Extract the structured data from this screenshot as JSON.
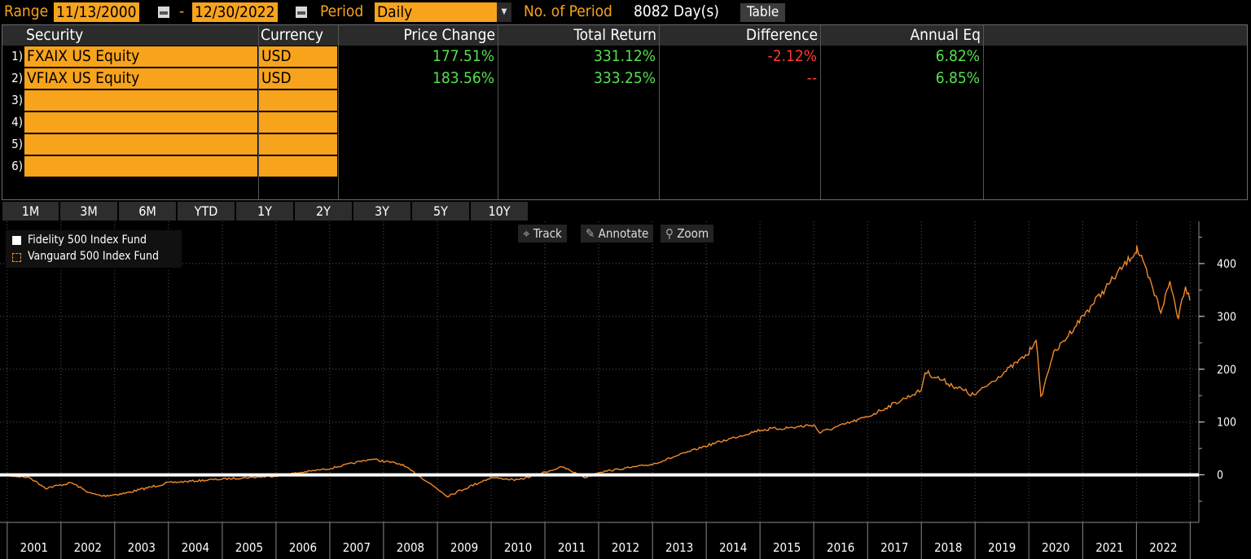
{
  "toolbar": {
    "range_label": "Range",
    "start_date": "11/13/2000",
    "dash": "-",
    "end_date": "12/30/2022",
    "period_label": "Period",
    "period_value": "Daily",
    "num_period_label": "No. of Period",
    "num_period_value": "8082 Day(s)",
    "table_button": "Table"
  },
  "table": {
    "headers": {
      "security": "Security",
      "currency": "Currency",
      "price_change": "Price Change",
      "total_return": "Total Return",
      "difference": "Difference",
      "annual_eq": "Annual Eq"
    },
    "rows": [
      {
        "num": "1)",
        "security": "FXAIX US Equity",
        "currency": "USD",
        "price_change": "177.51%",
        "total_return": "331.12%",
        "difference": "-2.12%",
        "annual_eq": "6.82%"
      },
      {
        "num": "2)",
        "security": "VFIAX US Equity",
        "currency": "USD",
        "price_change": "183.56%",
        "total_return": "333.25%",
        "difference": "--",
        "annual_eq": "6.85%"
      },
      {
        "num": "3)",
        "security": "",
        "currency": "",
        "price_change": "",
        "total_return": "",
        "difference": "",
        "annual_eq": ""
      },
      {
        "num": "4)",
        "security": "",
        "currency": "",
        "price_change": "",
        "total_return": "",
        "difference": "",
        "annual_eq": ""
      },
      {
        "num": "5)",
        "security": "",
        "currency": "",
        "price_change": "",
        "total_return": "",
        "difference": "",
        "annual_eq": ""
      },
      {
        "num": "6)",
        "security": "",
        "currency": "",
        "price_change": "",
        "total_return": "",
        "difference": "",
        "annual_eq": ""
      }
    ]
  },
  "periods": [
    "1M",
    "3M",
    "6M",
    "YTD",
    "1Y",
    "2Y",
    "3Y",
    "5Y",
    "10Y"
  ],
  "chart_tools": {
    "track": "Track",
    "annotate": "Annotate",
    "zoom": "Zoom"
  },
  "colors": {
    "orange": "#f7a31c",
    "green": "#56e04f",
    "red": "#ff3b2f",
    "series_white": "#ffffff",
    "series_orange": "#f08a2c"
  },
  "chart_data": {
    "type": "line",
    "title": "",
    "xlabel": "",
    "ylabel": "",
    "ylim": [
      -90,
      480
    ],
    "yticks": [
      0,
      100,
      200,
      300,
      400
    ],
    "x_ticks": [
      "2001",
      "2002",
      "2003",
      "2004",
      "2005",
      "2006",
      "2007",
      "2008",
      "2009",
      "2010",
      "2011",
      "2012",
      "2013",
      "2014",
      "2015",
      "2016",
      "2017",
      "2018",
      "2019",
      "2020",
      "2021",
      "2022"
    ],
    "legend_position": "top-left",
    "series": [
      {
        "name": "Fidelity 500 Index Fund",
        "color": "#ffffff",
        "x": [
          "2000-11-13",
          "2022-12-30"
        ],
        "y": [
          0,
          0
        ]
      },
      {
        "name": "Vanguard 500 Index Fund",
        "color": "#f08a2c",
        "x": [
          "2000-11-13",
          "2001-06-01",
          "2001-09-20",
          "2002-03-15",
          "2002-07-20",
          "2002-10-09",
          "2003-03-11",
          "2003-12-31",
          "2004-12-31",
          "2005-12-31",
          "2006-12-31",
          "2007-10-09",
          "2008-05-01",
          "2008-09-30",
          "2009-03-09",
          "2009-12-31",
          "2010-07-01",
          "2010-12-31",
          "2011-04-29",
          "2011-10-03",
          "2011-12-31",
          "2012-12-31",
          "2013-12-31",
          "2014-12-31",
          "2015-08-24",
          "2015-12-31",
          "2016-02-11",
          "2016-12-31",
          "2017-12-31",
          "2018-01-26",
          "2018-12-24",
          "2019-12-31",
          "2020-02-19",
          "2020-03-23",
          "2020-06-08",
          "2020-12-31",
          "2021-12-31",
          "2022-01-03",
          "2022-06-16",
          "2022-08-16",
          "2022-10-12",
          "2022-11-30",
          "2022-12-30"
        ],
        "y": [
          0,
          -5,
          -25,
          -15,
          -35,
          -40,
          -35,
          -15,
          -8,
          -2,
          12,
          30,
          20,
          -8,
          -40,
          -5,
          -10,
          5,
          15,
          -5,
          5,
          20,
          55,
          85,
          90,
          95,
          80,
          110,
          160,
          195,
          150,
          230,
          260,
          145,
          225,
          300,
          425,
          430,
          310,
          365,
          300,
          360,
          330
        ]
      }
    ]
  }
}
